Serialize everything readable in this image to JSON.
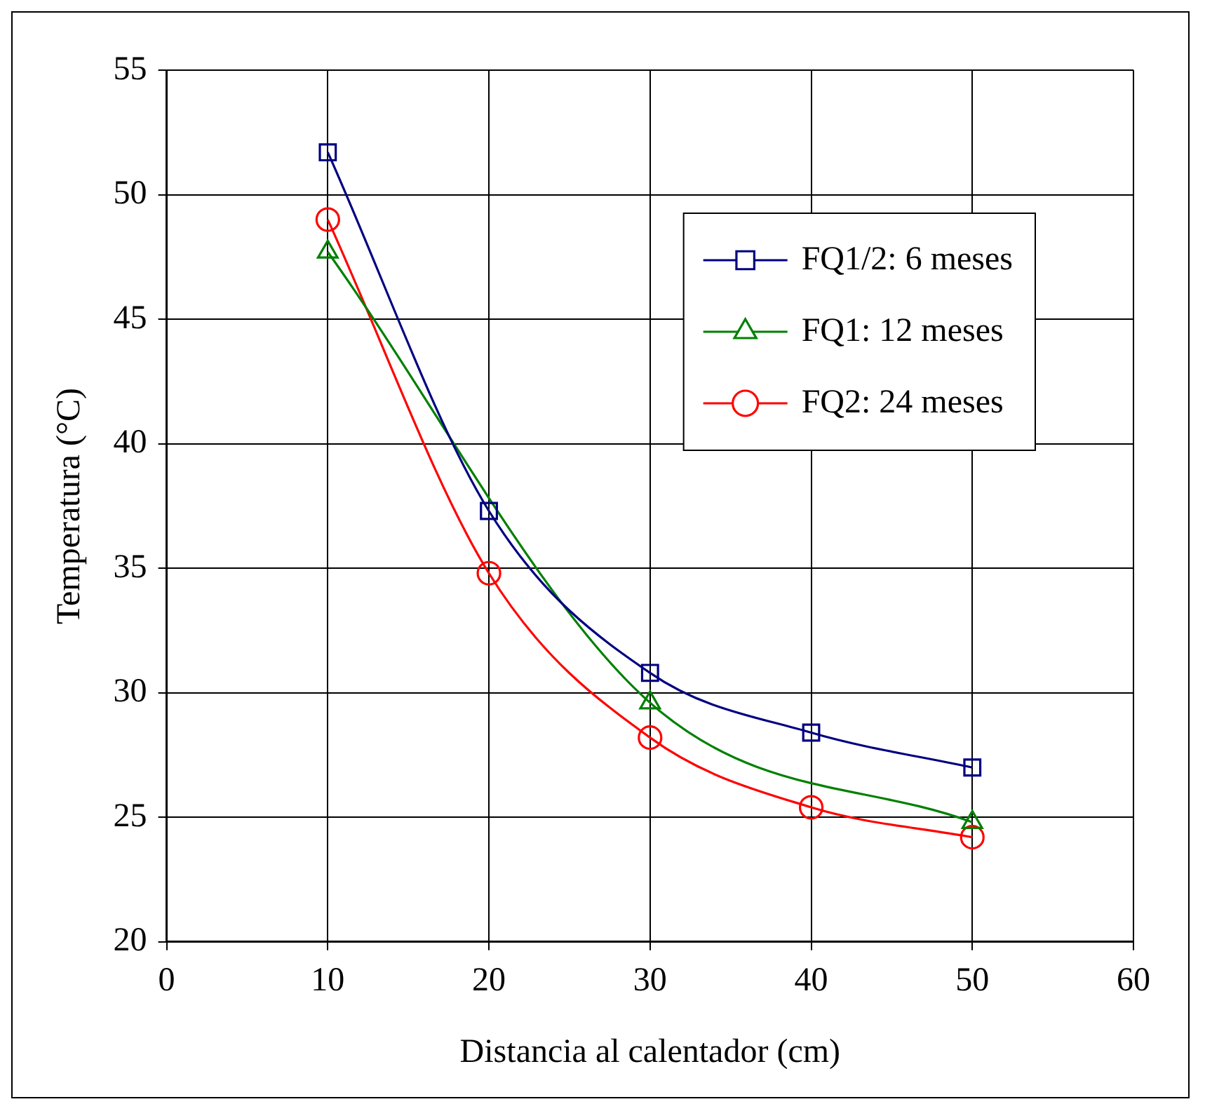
{
  "chart_data": {
    "type": "line",
    "xlabel": "Distancia al calentador (cm)",
    "ylabel": "Temperatura (°C)",
    "x": [
      10,
      20,
      30,
      40,
      50
    ],
    "series": [
      {
        "name": "FQ1/2: 6 meses",
        "color": "#000080",
        "marker": "square",
        "values": [
          51.7,
          37.3,
          30.8,
          28.4,
          27.0
        ]
      },
      {
        "name": "FQ1: 12 meses",
        "color": "#008000",
        "marker": "triangle",
        "values": [
          47.7,
          null,
          29.6,
          null,
          24.8
        ]
      },
      {
        "name": "FQ2: 24 meses",
        "color": "#ff0000",
        "marker": "circle",
        "values": [
          49.0,
          34.8,
          28.2,
          25.4,
          24.2
        ]
      }
    ],
    "xlim": [
      0,
      60
    ],
    "xticks": [
      0,
      10,
      20,
      30,
      40,
      50,
      60
    ],
    "ylim": [
      20,
      55
    ],
    "yticks": [
      20,
      25,
      30,
      35,
      40,
      45,
      50,
      55
    ],
    "grid": true,
    "legend": "top right",
    "line_style": "solid"
  }
}
